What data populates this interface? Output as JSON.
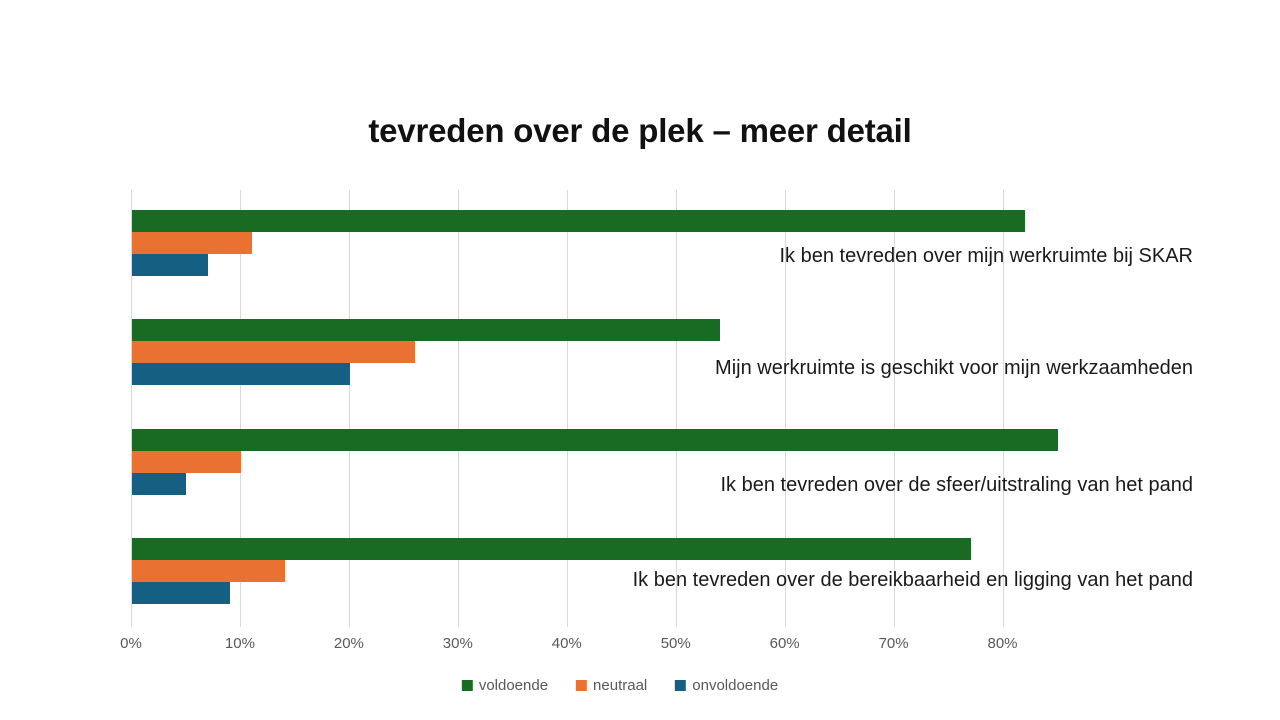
{
  "title": "tevreden over de plek – meer detail",
  "chart_data": {
    "type": "bar",
    "orientation": "horizontal",
    "title": "tevreden over de plek – meer detail",
    "categories": [
      "Ik ben tevreden over mijn werkruimte bij SKAR",
      "Mijn werkruimte is geschikt voor mijn werkzaamheden",
      "Ik ben tevreden over de sfeer/uitstraling van het pand",
      "Ik ben tevreden over de bereikbaarheid en ligging van het pand"
    ],
    "series": [
      {
        "name": "voldoende",
        "color": "#196B24",
        "values": [
          82,
          54,
          85,
          77
        ]
      },
      {
        "name": "neutraal",
        "color": "#E97132",
        "values": [
          11,
          26,
          10,
          14
        ]
      },
      {
        "name": "onvoldoende",
        "color": "#156082",
        "values": [
          7,
          20,
          5,
          9
        ]
      }
    ],
    "x_axis": {
      "ticks": [
        {
          "value": 0,
          "label": "0%"
        },
        {
          "value": 10,
          "label": "10%"
        },
        {
          "value": 20,
          "label": "20%"
        },
        {
          "value": 30,
          "label": "30%"
        },
        {
          "value": 40,
          "label": "40%"
        },
        {
          "value": 50,
          "label": "50%"
        },
        {
          "value": 60,
          "label": "60%"
        },
        {
          "value": 70,
          "label": "70%"
        },
        {
          "value": 80,
          "label": "80%"
        }
      ],
      "xlim": [
        0,
        85
      ],
      "unit": "percent"
    },
    "grid": "vertical-major",
    "legend_position": "bottom-center",
    "legend": [
      "voldoende",
      "neutraal",
      "onvoldoende"
    ]
  },
  "colors": {
    "voldoende": "#196B24",
    "neutraal": "#E97132",
    "onvoldoende": "#156082",
    "gridline": "#d9d9d9",
    "axis_text": "#595959",
    "label_text": "#1a1a1a",
    "background": "#ffffff"
  }
}
